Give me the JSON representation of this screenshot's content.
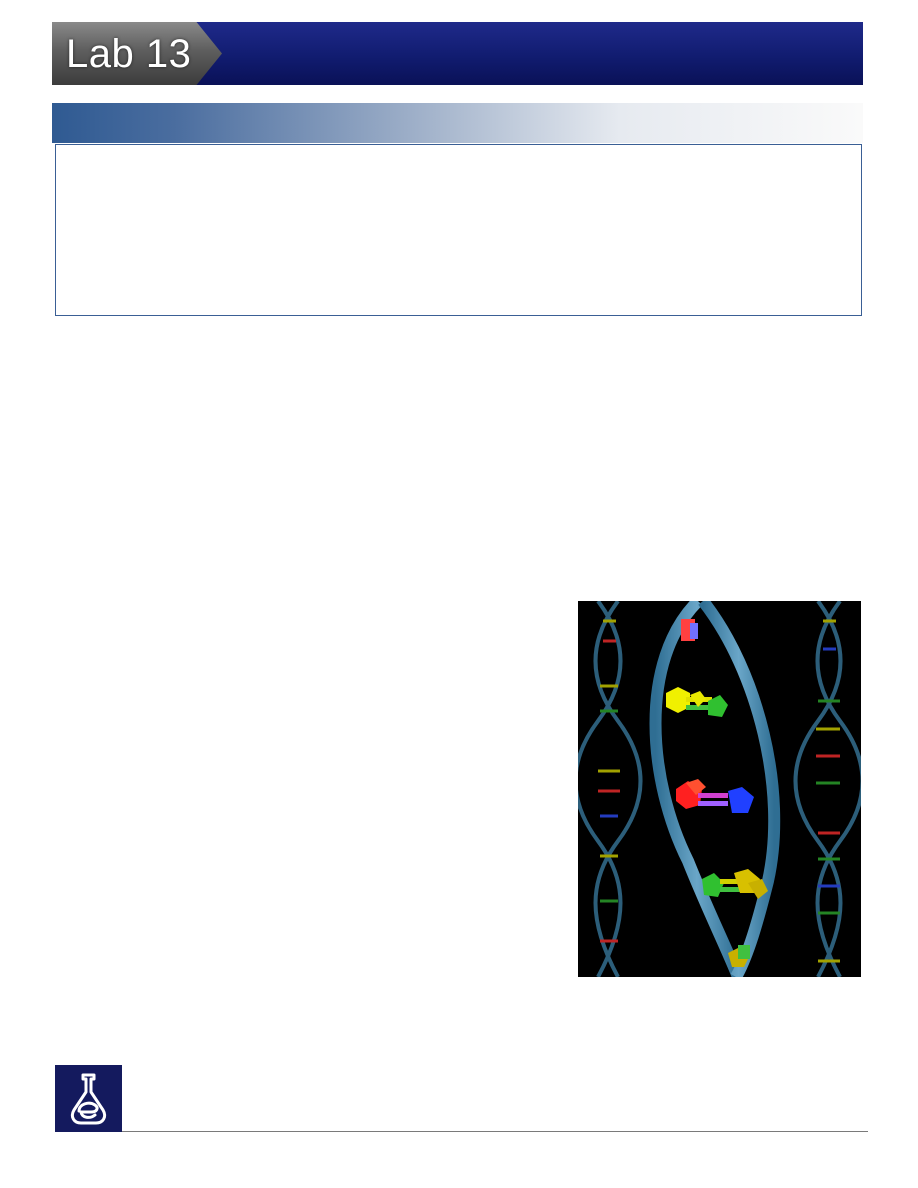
{
  "header": {
    "lab_label": "Lab 13",
    "colors": {
      "tab_gray": "#5e5e5e",
      "bar_navy": "#111c70"
    }
  },
  "section": {
    "banner_color": "#2f5a92",
    "box_border_color": "#3a5f95"
  },
  "figure": {
    "icon": "dna-double-helix-illustration",
    "background": "#000000"
  },
  "footer": {
    "logo_icon": "flask-e-logo-icon",
    "logo_color": "#141a5e"
  }
}
